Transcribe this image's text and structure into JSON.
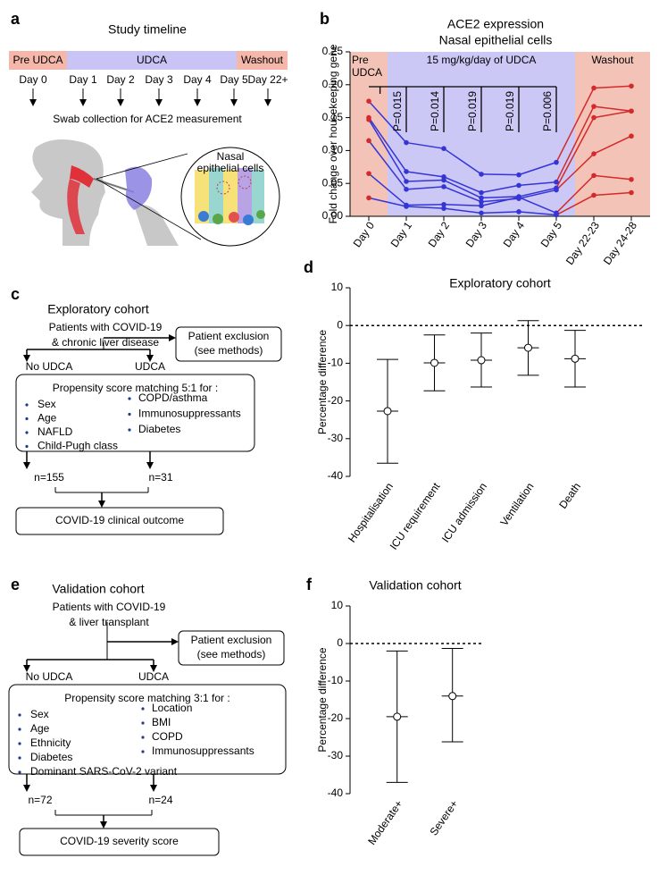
{
  "panel_labels": [
    "a",
    "b",
    "c",
    "d",
    "e",
    "f"
  ],
  "timeline": {
    "title": "Study timeline",
    "phases": [
      {
        "label": "Pre UDCA",
        "color": "#f4b7aa",
        "text_color": "#d42a2a"
      },
      {
        "label": "UDCA",
        "color": "#c8c4f6",
        "text_color": "#3535d5"
      },
      {
        "label": "Washout",
        "color": "#f4b7aa",
        "text_color": "#d42a2a"
      }
    ],
    "days": [
      "Day 0",
      "Day 1",
      "Day 2",
      "Day 3",
      "Day 4",
      "Day 5",
      "Day 22+"
    ],
    "caption": "Swab collection for ACE2 measurement",
    "inset_label": [
      "Nasal",
      "epithelial cells"
    ]
  },
  "exploratory_flow": {
    "title": "Exploratory cohort",
    "population": [
      "Patients with COVID-19",
      "& chronic liver disease"
    ],
    "exclusion": [
      "Patient exclusion",
      "(see methods)"
    ],
    "groups": [
      "No UDCA",
      "UDCA"
    ],
    "matching": "Propensity score matching 5:1 for :",
    "criteria_left": [
      "Sex",
      "Age",
      "NAFLD",
      "Child-Pugh class"
    ],
    "criteria_right": [
      "COPD/asthma",
      "Immunosuppressants",
      "Diabetes"
    ],
    "counts": [
      "n=155",
      "n=31"
    ],
    "outcome": "COVID-19 clinical outcome"
  },
  "validation_flow": {
    "title": "Validation cohort",
    "population": [
      "Patients with COVID-19",
      "& liver transplant"
    ],
    "exclusion": [
      "Patient exclusion",
      "(see methods)"
    ],
    "groups": [
      "No UDCA",
      "UDCA"
    ],
    "matching": "Propensity score matching 3:1 for :",
    "criteria_left": [
      "Sex",
      "Age",
      "Ethnicity",
      "Diabetes",
      "Dominant SARS-CoV-2 variant"
    ],
    "criteria_right": [
      "Location",
      "BMI",
      "COPD",
      "Immunosuppressants"
    ],
    "counts": [
      "n=72",
      "n=24"
    ],
    "outcome": "COVID-19 severity score"
  },
  "chart_data": [
    {
      "type": "line",
      "title": "ACE2 expression",
      "subtitle": "Nasal epithelial cells",
      "y_label": "Fold change over housekeeping gene",
      "categories": [
        "Day 0",
        "Day 1",
        "Day 2",
        "Day 3",
        "Day 4",
        "Day 5",
        "Day 22-23",
        "Day 24-28"
      ],
      "point_colors": [
        "#d42a2a",
        "#3535d5",
        "#3535d5",
        "#3535d5",
        "#3535d5",
        "#3535d5",
        "#d42a2a",
        "#d42a2a"
      ],
      "band_colors": [
        "#f4c3b8",
        "#cbc8f6",
        "#f4c3b8"
      ],
      "band_labels": [
        [
          "Pre",
          "UDCA"
        ],
        [
          "15 mg/kg/day of UDCA"
        ],
        [
          "Washout"
        ]
      ],
      "p_values": [
        "P=0.015",
        "P=0.014",
        "P=0.019",
        "P=0.019",
        "P=0.006"
      ],
      "series": [
        {
          "values": [
            0.175,
            0.112,
            0.103,
            0.064,
            0.063,
            0.082,
            0.195,
            0.198
          ]
        },
        {
          "values": [
            0.15,
            0.068,
            0.06,
            0.036,
            0.047,
            0.052,
            0.167,
            0.16
          ]
        },
        {
          "values": [
            0.147,
            0.053,
            0.055,
            0.028,
            0.03,
            0.043,
            0.15,
            0.16
          ]
        },
        {
          "values": [
            0.115,
            0.041,
            0.045,
            0.022,
            0.027,
            0.04,
            0.095,
            0.122
          ]
        },
        {
          "values": [
            0.065,
            0.017,
            0.018,
            0.016,
            0.029,
            0.005,
            0.062,
            0.056
          ]
        },
        {
          "values": [
            0.028,
            0.015,
            0.012,
            0.005,
            0.007,
            0.002,
            0.032,
            0.036
          ]
        }
      ],
      "ylim": [
        0,
        0.25
      ],
      "yticks": [
        {
          "value": 0,
          "label": "0.00"
        },
        0.05,
        {
          "value": 0.1,
          "label": "0.10"
        },
        0.15,
        {
          "value": 0.2,
          "label": "0.20"
        },
        0.25
      ]
    },
    {
      "type": "errorbar",
      "title": "Exploratory cohort",
      "y_label": "Percentage difference",
      "categories": [
        "Hospitalisation",
        "ICU requirement",
        "ICU admission",
        "Ventilation",
        "Death"
      ],
      "values": [
        -22.7,
        -9.9,
        -9.2,
        -5.9,
        -8.8
      ],
      "lower": [
        -36.5,
        -17.3,
        -16.3,
        -13.2,
        -16.3
      ],
      "upper": [
        -9.0,
        -2.5,
        -2.0,
        1.3,
        -1.3
      ],
      "ylim": [
        -40,
        10
      ],
      "yticks": [
        -40,
        -30,
        -20,
        -10,
        0,
        10
      ],
      "reference_line": 0
    },
    {
      "type": "errorbar",
      "title": "Validation cohort",
      "y_label": "Percentage difference",
      "categories": [
        "Moderate+",
        "Severe+"
      ],
      "values": [
        -19.5,
        -14.0
      ],
      "lower": [
        -37.0,
        -26.2
      ],
      "upper": [
        -2.0,
        -1.3
      ],
      "ylim": [
        -40,
        10
      ],
      "yticks": [
        -40,
        -30,
        -20,
        -10,
        0,
        10
      ],
      "reference_line": 0
    }
  ]
}
